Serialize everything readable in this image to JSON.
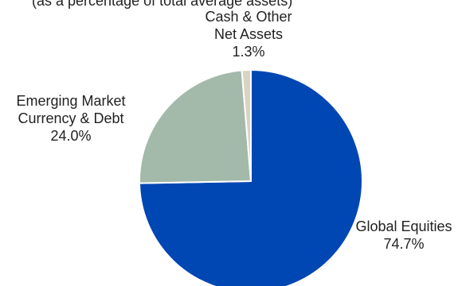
{
  "chart_data": {
    "type": "pie",
    "title": "",
    "subtitle": "(as a percentage of total average assets)",
    "slices": [
      {
        "name": "Global Equities",
        "value": 74.7,
        "label": "74.7%",
        "color": "#0047b3"
      },
      {
        "name": "Emerging Market Currency & Debt",
        "value": 24.0,
        "label": "24.0%",
        "color": "#a3b9aa"
      },
      {
        "name": "Cash & Other Net Assets",
        "value": 1.3,
        "label": "1.3%",
        "color": "#d9d4c0"
      }
    ]
  }
}
